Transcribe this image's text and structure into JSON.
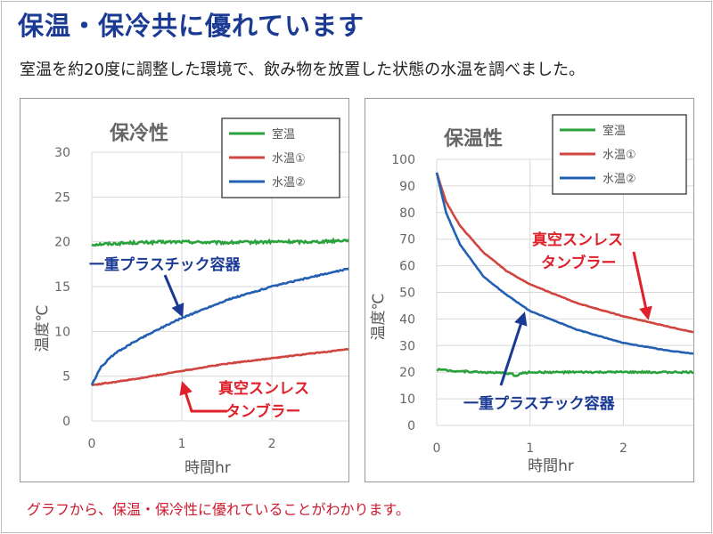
{
  "header": {
    "title": "保温・保冷共に優れています",
    "subtitle": "室温を約20度に調整した環境で、飲み物を放置した状態の水温を調べました。"
  },
  "footer": {
    "note": "グラフから、保温・保冷性に優れていることがわかります。"
  },
  "colors": {
    "title": "#1a3a93",
    "room_temp": "#2aa23c",
    "water1": "#d0453f",
    "water2": "#2360b4",
    "annotation_blue": "#1a3a93",
    "annotation_red": "#e0202a",
    "footnote": "#cc1a2e"
  },
  "chart_data": [
    {
      "type": "line",
      "title": "保冷性",
      "xlabel": "時間hr",
      "ylabel": "温度℃",
      "xlim": [
        0,
        2.85
      ],
      "ylim": [
        0,
        30
      ],
      "xticks": [
        0,
        1,
        2
      ],
      "yticks": [
        0,
        5,
        10,
        15,
        20,
        25,
        30
      ],
      "grid": true,
      "legend_position": "top-right",
      "series": [
        {
          "name": "室温",
          "color": "#2aa23c",
          "noise": 0.15,
          "x": [
            0,
            0.5,
            1,
            1.5,
            2,
            2.5,
            2.85
          ],
          "y": [
            19.7,
            19.9,
            20.0,
            19.9,
            20.0,
            20.0,
            20.2
          ]
        },
        {
          "name": "水温①",
          "color": "#d0453f",
          "noise": 0.05,
          "x": [
            0,
            0.5,
            1,
            1.5,
            2,
            2.5,
            2.85
          ],
          "y": [
            4.0,
            4.7,
            5.6,
            6.4,
            7.0,
            7.6,
            8.0
          ]
        },
        {
          "name": "水温②",
          "color": "#2360b4",
          "noise": 0.07,
          "x": [
            0,
            0.1,
            0.25,
            0.5,
            0.75,
            1,
            1.5,
            2,
            2.5,
            2.85
          ],
          "y": [
            4.0,
            6.0,
            7.5,
            9.0,
            10.3,
            11.5,
            13.5,
            15.0,
            16.2,
            17.0
          ]
        }
      ],
      "annotations": [
        {
          "text": "一重プラスチック容器",
          "color": "#1a3a93"
        },
        {
          "text": "真空スンレス",
          "color": "#e0202a"
        },
        {
          "text": "タンブラー",
          "color": "#e0202a"
        }
      ]
    },
    {
      "type": "line",
      "title": "保温性",
      "xlabel": "時間hr",
      "ylabel": "温度℃",
      "xlim": [
        0,
        2.75
      ],
      "ylim": [
        0,
        100
      ],
      "xticks": [
        0,
        1,
        2
      ],
      "yticks": [
        0,
        10,
        20,
        30,
        40,
        50,
        60,
        70,
        80,
        90,
        100
      ],
      "grid": true,
      "legend_position": "top-right",
      "series": [
        {
          "name": "室温",
          "color": "#2aa23c",
          "noise": 0.3,
          "x": [
            0,
            0.2,
            0.5,
            0.8,
            0.85,
            0.9,
            1.0,
            1.5,
            2,
            2.5,
            2.75
          ],
          "y": [
            21.0,
            20.5,
            20.0,
            19.5,
            18.5,
            19.5,
            20.0,
            20.0,
            20.0,
            20.0,
            20.0
          ]
        },
        {
          "name": "水温①",
          "color": "#d0453f",
          "noise": 0.1,
          "x": [
            0,
            0.1,
            0.25,
            0.5,
            0.75,
            1,
            1.5,
            2,
            2.5,
            2.75
          ],
          "y": [
            95,
            84,
            75,
            65,
            58,
            53,
            46,
            41,
            37,
            35
          ]
        },
        {
          "name": "水温②",
          "color": "#2360b4",
          "noise": 0.1,
          "x": [
            0,
            0.1,
            0.25,
            0.5,
            0.75,
            1,
            1.5,
            2,
            2.5,
            2.75
          ],
          "y": [
            95,
            80,
            68,
            56,
            49,
            43,
            36,
            31,
            28,
            27
          ]
        }
      ],
      "annotations": [
        {
          "text": "真空スンレス",
          "color": "#e0202a"
        },
        {
          "text": "タンブラー",
          "color": "#e0202a"
        },
        {
          "text": "一重プラスチック容器",
          "color": "#1a3a93"
        }
      ]
    }
  ]
}
